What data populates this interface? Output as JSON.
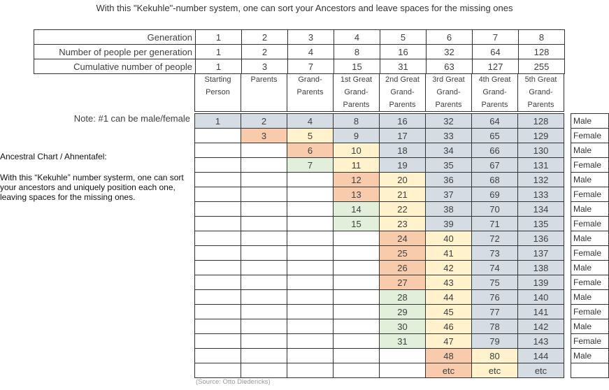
{
  "title": "With this \"Kekuhle\"-number system, one can sort your Ancestors and leave spaces for the missing ones",
  "side_heading": "Ancestral Chart / Ahnentafel:",
  "side_text": "With this “Kekuhle” number systerm, one can sort your ancestors and uniquely position each one, leaving spaces for the missing ones.",
  "note": "Note: #1 can be male/female",
  "source": "(Source: Otto Diedericks)",
  "header_rows": [
    {
      "label": "Generation",
      "values": [
        "1",
        "2",
        "3",
        "4",
        "5",
        "6",
        "7",
        "8"
      ]
    },
    {
      "label": "Number of people per generation",
      "values": [
        "1",
        "2",
        "4",
        "8",
        "16",
        "32",
        "64",
        "128"
      ]
    },
    {
      "label": "Cumulative number of people",
      "values": [
        "1",
        "3",
        "7",
        "15",
        "31",
        "63",
        "127",
        "255"
      ]
    }
  ],
  "descriptions": [
    "Starting\nPerson",
    "Parents",
    "Grand-\nParents",
    "1st Great\nGrand-\nParents",
    "2nd Great\nGrand-\nParents",
    "3rd Great\nGrand-\nParents",
    "4th Great\nGrand-\nParents",
    "5th Great\nGrand-\nParents"
  ],
  "grid": [
    [
      "1",
      "2",
      "4",
      "8",
      "16",
      "32",
      "64",
      "128"
    ],
    [
      "",
      "3",
      "5",
      "9",
      "17",
      "33",
      "65",
      "129"
    ],
    [
      "",
      "",
      "6",
      "10",
      "18",
      "34",
      "66",
      "130"
    ],
    [
      "",
      "",
      "7",
      "11",
      "19",
      "35",
      "67",
      "131"
    ],
    [
      "",
      "",
      "",
      "12",
      "20",
      "36",
      "68",
      "132"
    ],
    [
      "",
      "",
      "",
      "13",
      "21",
      "37",
      "69",
      "133"
    ],
    [
      "",
      "",
      "",
      "14",
      "22",
      "38",
      "70",
      "134"
    ],
    [
      "",
      "",
      "",
      "15",
      "23",
      "39",
      "71",
      "135"
    ],
    [
      "",
      "",
      "",
      "",
      "24",
      "40",
      "72",
      "136"
    ],
    [
      "",
      "",
      "",
      "",
      "25",
      "41",
      "73",
      "137"
    ],
    [
      "",
      "",
      "",
      "",
      "26",
      "42",
      "74",
      "138"
    ],
    [
      "",
      "",
      "",
      "",
      "27",
      "43",
      "75",
      "139"
    ],
    [
      "",
      "",
      "",
      "",
      "28",
      "44",
      "76",
      "140"
    ],
    [
      "",
      "",
      "",
      "",
      "29",
      "45",
      "77",
      "141"
    ],
    [
      "",
      "",
      "",
      "",
      "30",
      "46",
      "78",
      "142"
    ],
    [
      "",
      "",
      "",
      "",
      "31",
      "47",
      "79",
      "143"
    ],
    [
      "",
      "",
      "",
      "",
      "",
      "48",
      "80",
      "144"
    ],
    [
      "",
      "",
      "",
      "",
      "",
      "etc",
      "etc",
      "etc"
    ]
  ],
  "cell_colors": [
    [
      "b",
      "b",
      "b",
      "b",
      "b",
      "b",
      "b",
      "b"
    ],
    [
      "",
      "p",
      "y",
      "b",
      "b",
      "b",
      "b",
      "b"
    ],
    [
      "",
      "",
      "p",
      "y",
      "b",
      "b",
      "b",
      "b"
    ],
    [
      "",
      "",
      "g",
      "y",
      "b",
      "b",
      "b",
      "b"
    ],
    [
      "",
      "",
      "",
      "p",
      "y",
      "b",
      "b",
      "b"
    ],
    [
      "",
      "",
      "",
      "p",
      "y",
      "b",
      "b",
      "b"
    ],
    [
      "",
      "",
      "",
      "g",
      "y",
      "b",
      "b",
      "b"
    ],
    [
      "",
      "",
      "",
      "g",
      "y",
      "b",
      "b",
      "b"
    ],
    [
      "",
      "",
      "",
      "",
      "p",
      "y",
      "b",
      "b"
    ],
    [
      "",
      "",
      "",
      "",
      "p",
      "y",
      "b",
      "b"
    ],
    [
      "",
      "",
      "",
      "",
      "p",
      "y",
      "b",
      "b"
    ],
    [
      "",
      "",
      "",
      "",
      "p",
      "y",
      "b",
      "b"
    ],
    [
      "",
      "",
      "",
      "",
      "g",
      "y",
      "b",
      "b"
    ],
    [
      "",
      "",
      "",
      "",
      "g",
      "y",
      "b",
      "b"
    ],
    [
      "",
      "",
      "",
      "",
      "g",
      "y",
      "b",
      "b"
    ],
    [
      "",
      "",
      "",
      "",
      "g",
      "y",
      "b",
      "b"
    ],
    [
      "",
      "",
      "",
      "",
      "",
      "p",
      "y",
      "b"
    ],
    [
      "",
      "",
      "",
      "",
      "",
      "p",
      "y",
      "b"
    ]
  ],
  "colors": {
    "blue": "#d6dce4",
    "peach": "#f8cbad",
    "yellow": "#fff2cc",
    "green": "#e2efda"
  },
  "sex": [
    "Male",
    "Female",
    "Male",
    "Female",
    "Male",
    "Female",
    "Male",
    "Female",
    "Male",
    "Female",
    "Male",
    "Female",
    "Male",
    "Female",
    "Male",
    "Female",
    "Male",
    ""
  ]
}
